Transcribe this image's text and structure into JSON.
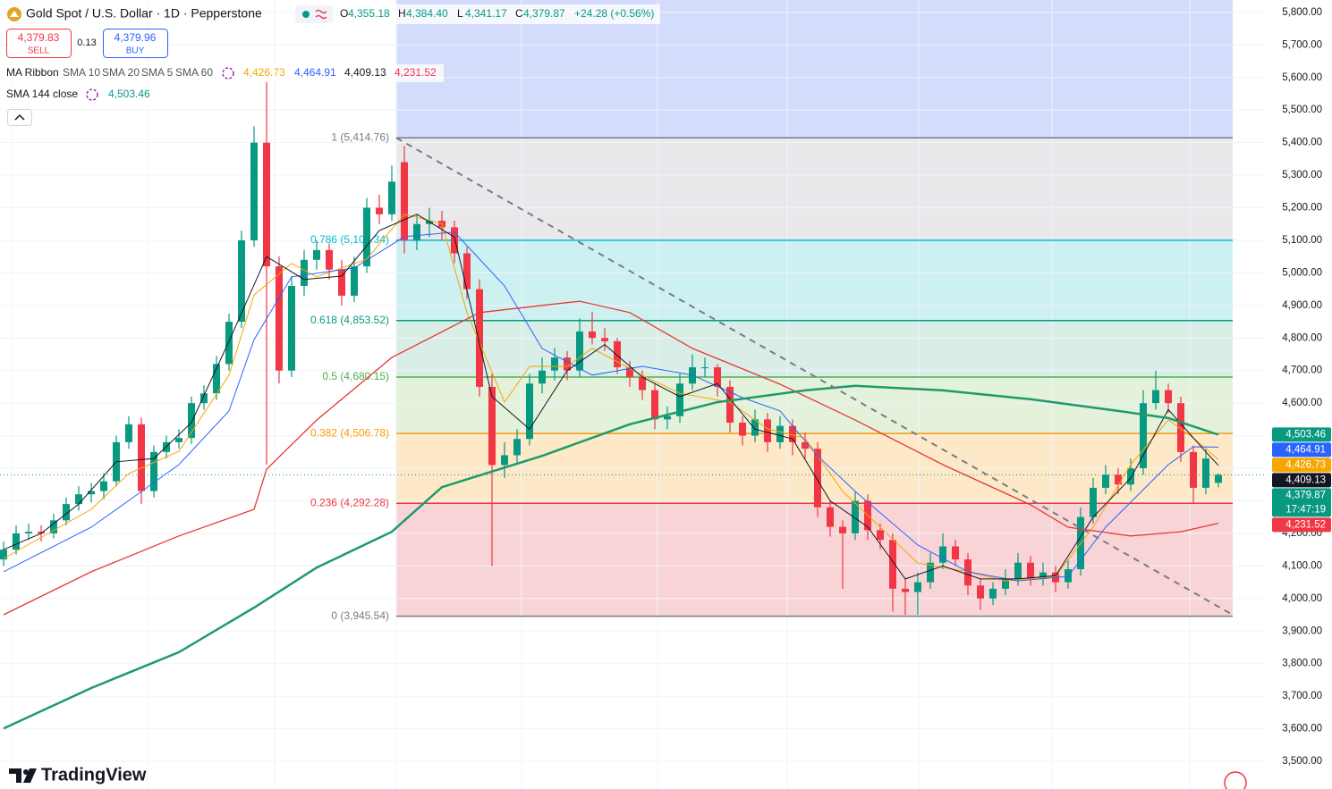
{
  "chart_data": {
    "type": "candlestick",
    "title": "Gold Spot / U.S. Dollar · 1D · Pepperstone",
    "ohlc": [
      {
        "key": "O",
        "value": "4,355.18"
      },
      {
        "key": "H",
        "value": "4,384.40"
      },
      {
        "key": "L",
        "value": "4,341.17"
      },
      {
        "key": "C",
        "value": "4,379.87"
      }
    ],
    "change": "+24.28 (+0.56%)",
    "sell": {
      "price": "4,379.83",
      "label": "SELL"
    },
    "spread": "0.13",
    "buy": {
      "price": "4,379.96",
      "label": "BUY"
    },
    "indicator_group": "MA Ribbon",
    "up_color": "#089981",
    "down_color": "#f23645",
    "ylim": [
      3415,
      5838
    ],
    "yticks": [
      {
        "value": 3500,
        "label": "3,500.00"
      },
      {
        "value": 3600,
        "label": "3,600.00"
      },
      {
        "value": 3700,
        "label": "3,700.00"
      },
      {
        "value": 3800,
        "label": "3,800.00"
      },
      {
        "value": 3900,
        "label": "3,900.00"
      },
      {
        "value": 4000,
        "label": "4,000.00"
      },
      {
        "value": 4100,
        "label": "4,100.00"
      },
      {
        "value": 4200,
        "label": "4,200.00"
      },
      {
        "value": 4300,
        "label": "4,300.00"
      },
      {
        "value": 4400,
        "label": "4,400.00"
      },
      {
        "value": 4500,
        "label": "4,500.00"
      },
      {
        "value": 4600,
        "label": "4,600.00"
      },
      {
        "value": 4700,
        "label": "4,700.00"
      },
      {
        "value": 4800,
        "label": "4,800.00"
      },
      {
        "value": 4900,
        "label": "4,900.00"
      },
      {
        "value": 5000,
        "label": "5,000.00"
      },
      {
        "value": 5100,
        "label": "5,100.00"
      },
      {
        "value": 5200,
        "label": "5,200.00"
      },
      {
        "value": 5300,
        "label": "5,300.00"
      },
      {
        "value": 5400,
        "label": "5,400.00"
      },
      {
        "value": 5500,
        "label": "5,500.00"
      },
      {
        "value": 5600,
        "label": "5,600.00"
      },
      {
        "value": 5700,
        "label": "5,700.00"
      },
      {
        "value": 5800,
        "label": "5,800.00"
      }
    ],
    "grid": true,
    "candles": [
      [
        4120,
        4175,
        4100,
        4150
      ],
      [
        4150,
        4225,
        4135,
        4200
      ],
      [
        4200,
        4230,
        4180,
        4205
      ],
      [
        4205,
        4225,
        4175,
        4200
      ],
      [
        4200,
        4260,
        4185,
        4240
      ],
      [
        4240,
        4310,
        4225,
        4290
      ],
      [
        4290,
        4345,
        4270,
        4320
      ],
      [
        4320,
        4355,
        4295,
        4330
      ],
      [
        4330,
        4385,
        4305,
        4360
      ],
      [
        4360,
        4500,
        4345,
        4480
      ],
      [
        4480,
        4560,
        4460,
        4535
      ],
      [
        4535,
        4555,
        4290,
        4330
      ],
      [
        4330,
        4470,
        4310,
        4450
      ],
      [
        4450,
        4500,
        4430,
        4480
      ],
      [
        4480,
        4520,
        4460,
        4493
      ],
      [
        4493,
        4620,
        4475,
        4600
      ],
      [
        4600,
        4655,
        4580,
        4630
      ],
      [
        4630,
        4745,
        4610,
        4720
      ],
      [
        4720,
        4875,
        4700,
        4850
      ],
      [
        4850,
        5130,
        4830,
        5100
      ],
      [
        5100,
        5450,
        5080,
        5400
      ],
      [
        5400,
        5586,
        4411,
        5020
      ],
      [
        5020,
        5050,
        4660,
        4700
      ],
      [
        4700,
        4990,
        4680,
        4960
      ],
      [
        4960,
        5070,
        4930,
        5040
      ],
      [
        5040,
        5100,
        5010,
        5070
      ],
      [
        5070,
        5090,
        4980,
        5010
      ],
      [
        5010,
        5040,
        4900,
        4930
      ],
      [
        4930,
        5050,
        4910,
        5020
      ],
      [
        5020,
        5230,
        5000,
        5200
      ],
      [
        5200,
        5240,
        5150,
        5180
      ],
      [
        5180,
        5330,
        5160,
        5280
      ],
      [
        5340,
        5390,
        5060,
        5100
      ],
      [
        5100,
        5180,
        5070,
        5150
      ],
      [
        5150,
        5200,
        5110,
        5160
      ],
      [
        5160,
        5190,
        5100,
        5140
      ],
      [
        5140,
        5160,
        5030,
        5060
      ],
      [
        5060,
        5080,
        4920,
        4950
      ],
      [
        4950,
        4980,
        4620,
        4650
      ],
      [
        4650,
        4690,
        4100,
        4410
      ],
      [
        4410,
        4480,
        4370,
        4440
      ],
      [
        4440,
        4520,
        4410,
        4490
      ],
      [
        4490,
        4690,
        4470,
        4660
      ],
      [
        4660,
        4740,
        4630,
        4700
      ],
      [
        4700,
        4770,
        4670,
        4740
      ],
      [
        4740,
        4760,
        4670,
        4700
      ],
      [
        4700,
        4860,
        4680,
        4820
      ],
      [
        4820,
        4880,
        4780,
        4800
      ],
      [
        4800,
        4830,
        4760,
        4790
      ],
      [
        4790,
        4800,
        4690,
        4710
      ],
      [
        4710,
        4730,
        4650,
        4680
      ],
      [
        4680,
        4700,
        4610,
        4640
      ],
      [
        4640,
        4660,
        4520,
        4550
      ],
      [
        4550,
        4590,
        4520,
        4560
      ],
      [
        4560,
        4690,
        4540,
        4660
      ],
      [
        4660,
        4750,
        4640,
        4710
      ],
      [
        4710,
        4740,
        4680,
        4710
      ],
      [
        4710,
        4720,
        4620,
        4650
      ],
      [
        4650,
        4670,
        4510,
        4540
      ],
      [
        4540,
        4560,
        4470,
        4500
      ],
      [
        4500,
        4580,
        4480,
        4550
      ],
      [
        4550,
        4570,
        4450,
        4480
      ],
      [
        4480,
        4560,
        4460,
        4530
      ],
      [
        4530,
        4550,
        4440,
        4480
      ],
      [
        4480,
        4510,
        4430,
        4460
      ],
      [
        4460,
        4480,
        4250,
        4280
      ],
      [
        4280,
        4300,
        4190,
        4220
      ],
      [
        4220,
        4240,
        4030,
        4200
      ],
      [
        4200,
        4330,
        4180,
        4300
      ],
      [
        4300,
        4320,
        4180,
        4210
      ],
      [
        4210,
        4230,
        4150,
        4180
      ],
      [
        4180,
        4200,
        3960,
        4030
      ],
      [
        4030,
        4060,
        3950,
        4020
      ],
      [
        4020,
        4080,
        3950,
        4050
      ],
      [
        4050,
        4140,
        4030,
        4110
      ],
      [
        4110,
        4200,
        4090,
        4160
      ],
      [
        4160,
        4180,
        4100,
        4120
      ],
      [
        4120,
        4140,
        4010,
        4040
      ],
      [
        4040,
        4060,
        3965,
        4000
      ],
      [
        4000,
        4050,
        3980,
        4030
      ],
      [
        4030,
        4090,
        4010,
        4060
      ],
      [
        4060,
        4140,
        4040,
        4110
      ],
      [
        4110,
        4130,
        4040,
        4060
      ],
      [
        4060,
        4110,
        4040,
        4080
      ],
      [
        4080,
        4100,
        4020,
        4050
      ],
      [
        4050,
        4120,
        4030,
        4090
      ],
      [
        4090,
        4280,
        4070,
        4250
      ],
      [
        4250,
        4370,
        4230,
        4340
      ],
      [
        4340,
        4410,
        4320,
        4380
      ],
      [
        4380,
        4400,
        4320,
        4350
      ],
      [
        4350,
        4430,
        4330,
        4400
      ],
      [
        4400,
        4640,
        4380,
        4600
      ],
      [
        4600,
        4700,
        4580,
        4640
      ],
      [
        4640,
        4660,
        4570,
        4600
      ],
      [
        4600,
        4620,
        4420,
        4450
      ],
      [
        4450,
        4470,
        4290,
        4340
      ],
      [
        4340,
        4460,
        4320,
        4430
      ],
      [
        4355.18,
        4384.4,
        4341.17,
        4379.87
      ]
    ],
    "series": [
      {
        "name": "SMA 10",
        "color": "#f7a600",
        "width": 1,
        "value_label": "4,426.73",
        "x": [
          0,
          7,
          10,
          14,
          18,
          20,
          23,
          25,
          29,
          32,
          35,
          37,
          40,
          42,
          45,
          47,
          51,
          54,
          58,
          61,
          64,
          67,
          70,
          73,
          77,
          80,
          84,
          87,
          90,
          93,
          95,
          97
        ],
        "values": [
          4123,
          4274,
          4384,
          4452,
          4686,
          4932,
          5029,
          4988,
          5042,
          5180,
          5152,
          4878,
          4603,
          4713,
          4713,
          4768,
          4686,
          4630,
          4603,
          4521,
          4493,
          4329,
          4219,
          4109,
          4082,
          4054,
          4068,
          4219,
          4411,
          4548,
          4493,
          4427
        ]
      },
      {
        "name": "SMA 20",
        "color": "#2962ff",
        "width": 1,
        "value_label": "4,464.91",
        "x": [
          0,
          7,
          10,
          14,
          18,
          20,
          23,
          28,
          32,
          36,
          40,
          43,
          47,
          51,
          55,
          59,
          62,
          65,
          68,
          73,
          77,
          81,
          85,
          88,
          93,
          95,
          97
        ],
        "values": [
          4082,
          4219,
          4301,
          4411,
          4576,
          4795,
          4988,
          5015,
          5111,
          5125,
          4960,
          4768,
          4686,
          4713,
          4686,
          4617,
          4576,
          4438,
          4329,
          4164,
          4082,
          4054,
          4068,
          4219,
          4411,
          4466,
          4465
        ]
      },
      {
        "name": "SMA 5",
        "color": "#131722",
        "width": 1,
        "value_label": "4,409.13",
        "x": [
          0,
          3,
          6,
          9,
          12,
          15,
          18,
          21,
          24,
          27,
          30,
          33,
          36,
          39,
          42,
          45,
          48,
          51,
          54,
          57,
          60,
          63,
          66,
          69,
          72,
          75,
          78,
          81,
          84,
          87,
          90,
          93,
          96,
          97
        ],
        "values": [
          4150,
          4200,
          4290,
          4420,
          4430,
          4540,
          4790,
          5050,
          4980,
          4990,
          5130,
          5180,
          5110,
          4620,
          4520,
          4700,
          4780,
          4680,
          4620,
          4660,
          4520,
          4490,
          4300,
          4220,
          4060,
          4100,
          4060,
          4060,
          4070,
          4250,
          4370,
          4580,
          4450,
          4409
        ]
      },
      {
        "name": "SMA 60",
        "color": "#e53935",
        "width": 1.3,
        "value_label": "4,231.52",
        "x": [
          0,
          7,
          14,
          20,
          21,
          25,
          31,
          38,
          43,
          46,
          50,
          55,
          62,
          68,
          75,
          82,
          85,
          90,
          94,
          97
        ],
        "values": [
          3950,
          4082,
          4192,
          4274,
          4397,
          4548,
          4740,
          4878,
          4900,
          4913,
          4878,
          4768,
          4658,
          4548,
          4411,
          4288,
          4219,
          4192,
          4205,
          4231
        ]
      },
      {
        "name": "SMA 144 close",
        "color": "#1e9a6b",
        "width": 2.5,
        "value_label": "4,503.46",
        "x": [
          0,
          7,
          14,
          20,
          25,
          31,
          35,
          43,
          50,
          57,
          64,
          68,
          75,
          82,
          89,
          93,
          97
        ],
        "values": [
          3601,
          3725,
          3835,
          3972,
          4095,
          4205,
          4342,
          4438,
          4535,
          4603,
          4639,
          4653,
          4639,
          4612,
          4576,
          4554,
          4503
        ]
      }
    ],
    "fib": {
      "x_range": [
        31.36,
        98.14
      ],
      "above_color": "#d3ddfb",
      "levels": [
        {
          "price": 5414.76,
          "label": "1 (5,414.76)",
          "color": "#787b86",
          "fill": "#e9e9eb"
        },
        {
          "price": 5100.34,
          "label": "0.786 (5,100.34)",
          "color": "#00bcd4",
          "fill": "#cdf1f1"
        },
        {
          "price": 4853.52,
          "label": "0.618 (4,853.52)",
          "color": "#089981",
          "fill": "#d9eee6"
        },
        {
          "price": 4680.15,
          "label": "0.5 (4,680.15)",
          "color": "#4caf50",
          "fill": "#e4f2dc"
        },
        {
          "price": 4506.78,
          "label": "0.382 (4,506.78)",
          "color": "#ff9800",
          "fill": "#fde9c8"
        },
        {
          "price": 4292.28,
          "label": "0.236 (4,292.28)",
          "color": "#f23645",
          "fill": "#f9d4d6"
        },
        {
          "price": 3945.54,
          "label": "0 (3,945.54)",
          "color": "#787b86"
        }
      ]
    },
    "trendline": {
      "x": [
        31.36,
        98.14
      ],
      "values": [
        5414.76,
        3950
      ],
      "color": "#787b86"
    },
    "current_price": 4379.87,
    "price_tags": [
      {
        "value": 4503.46,
        "label": "4,503.46",
        "color": "#089981"
      },
      {
        "value": 4464.91,
        "label": "4,464.91",
        "color": "#2962ff"
      },
      {
        "value": 4426.73,
        "label": "4,426.73",
        "color": "#f7a600"
      },
      {
        "value": 4409.13,
        "label": "4,409.13",
        "color": "#131722"
      },
      {
        "value": 4379.87,
        "label": "4,379.87",
        "sublabel": "17:47:19",
        "color": "#089981"
      },
      {
        "value": 4231.52,
        "label": "4,231.52",
        "color": "#f23645"
      }
    ],
    "brand": "TradingView"
  }
}
